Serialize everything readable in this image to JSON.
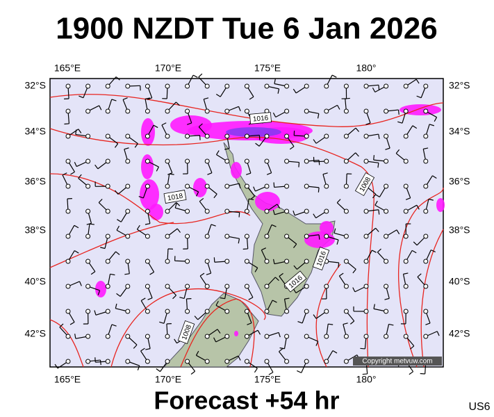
{
  "header": {
    "title": "1900 NZDT Tue 6 Jan 2026"
  },
  "map": {
    "top_labels": [
      "165°E",
      "170°E",
      "175°E",
      "180°"
    ],
    "bottom_labels": [
      "165°E",
      "170°E",
      "175°E",
      "180°"
    ],
    "left_labels": [
      "32°S",
      "34°S",
      "36°S",
      "38°S",
      "40°S",
      "42°S"
    ],
    "right_labels": [
      "32°S",
      "34°S",
      "36°S",
      "38°S",
      "40°S",
      "42°S"
    ],
    "isobar_labels": [
      "1016",
      "1018",
      "1008",
      "1016",
      "1016",
      "1008"
    ],
    "copyright": "Copyright metvuw.com"
  },
  "footer": {
    "forecast": "Forecast +54 hr",
    "code": "US6"
  }
}
